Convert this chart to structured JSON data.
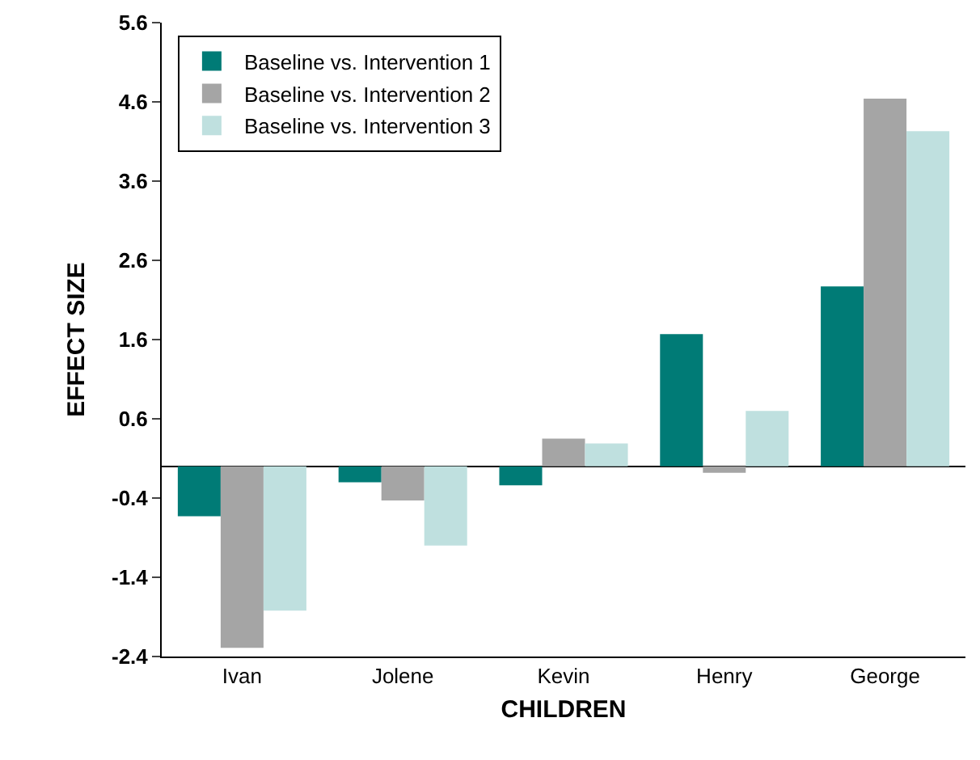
{
  "chart_data": {
    "type": "bar",
    "xlabel": "CHILDREN",
    "ylabel": "EFFECT SIZE",
    "categories": [
      "Ivan",
      "Jolene",
      "Kevin",
      "Henry",
      "George"
    ],
    "series": [
      {
        "name": "Baseline vs. Intervention 1",
        "color": "#007b76",
        "values": [
          -0.63,
          -0.2,
          -0.24,
          1.67,
          2.27
        ]
      },
      {
        "name": "Baseline vs. Intervention 2",
        "color": "#a5a5a5",
        "values": [
          -2.29,
          -0.43,
          0.35,
          -0.08,
          4.64
        ]
      },
      {
        "name": "Baseline vs. Intervention 3",
        "color": "#bfe0df",
        "values": [
          -1.82,
          -1.0,
          0.29,
          0.7,
          4.23
        ]
      }
    ],
    "ylim": [
      -2.4,
      5.6
    ],
    "yticks": [
      -2.4,
      -1.4,
      -0.4,
      0.6,
      1.6,
      2.6,
      3.6,
      4.6,
      5.6
    ],
    "grid": false,
    "legend": "top left"
  }
}
